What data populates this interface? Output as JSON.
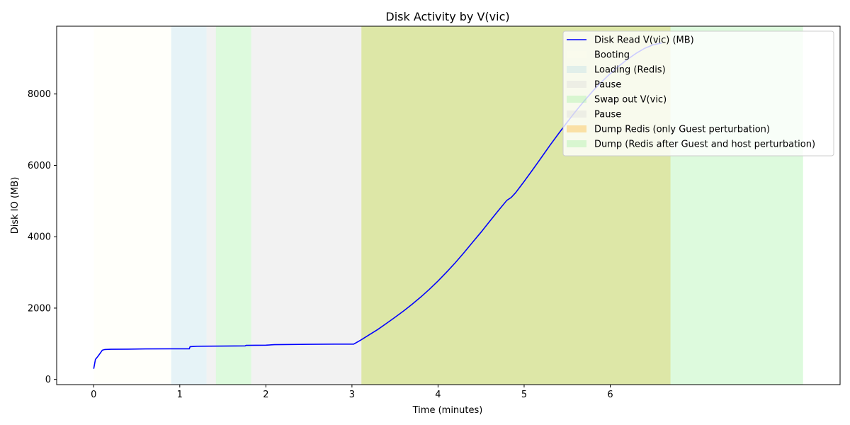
{
  "chart_data": {
    "type": "line",
    "title": "Disk Activity by V(vic)",
    "xlabel": "Time (minutes)",
    "ylabel": "Disk IO (MB)",
    "xlim": [
      -0.43,
      8.67
    ],
    "ylim": [
      -145,
      9900
    ],
    "xticks": [
      0,
      1,
      2,
      3,
      4,
      5,
      6
    ],
    "yticks": [
      0,
      2000,
      4000,
      6000,
      8000
    ],
    "grid": false,
    "legend_position": "top-right",
    "series": [
      {
        "name": "Disk Read V(vic) (MB)",
        "color": "#0000ff",
        "x": [
          0.0,
          0.02,
          0.05,
          0.08,
          0.1,
          0.13,
          0.2,
          0.4,
          0.6,
          0.9,
          1.11,
          1.12,
          1.2,
          1.5,
          1.76,
          1.77,
          2.0,
          2.1,
          2.3,
          2.5,
          2.8,
          3.02,
          3.1,
          3.2,
          3.3,
          3.4,
          3.5,
          3.6,
          3.7,
          3.8,
          3.9,
          4.0,
          4.1,
          4.2,
          4.3,
          4.4,
          4.5,
          4.6,
          4.7,
          4.8,
          4.85,
          4.9,
          5.0,
          5.1,
          5.2,
          5.3,
          5.4,
          5.5,
          5.6,
          5.7,
          5.8,
          5.9,
          6.0,
          6.1,
          6.2,
          6.3,
          6.4,
          6.5,
          6.6
        ],
        "values": [
          300,
          560,
          650,
          750,
          820,
          840,
          845,
          850,
          855,
          860,
          860,
          920,
          930,
          935,
          940,
          955,
          960,
          975,
          980,
          985,
          990,
          990,
          1100,
          1250,
          1400,
          1570,
          1740,
          1920,
          2110,
          2310,
          2530,
          2760,
          3010,
          3270,
          3550,
          3840,
          4130,
          4430,
          4730,
          5020,
          5100,
          5230,
          5550,
          5880,
          6220,
          6560,
          6890,
          7210,
          7520,
          7810,
          8090,
          8340,
          8570,
          8780,
          8970,
          9140,
          9280,
          9380,
          9430
        ]
      }
    ],
    "phases": [
      {
        "name": "Booting",
        "start": 0.0,
        "end": 0.9,
        "color": "#fffff0"
      },
      {
        "name": "Loading (Redis)",
        "start": 0.9,
        "end": 1.31,
        "color": "#add8e6"
      },
      {
        "name": "Pause",
        "start": 1.31,
        "end": 1.42,
        "color": "#d3d3d3"
      },
      {
        "name": "Swap out V(vic)",
        "start": 1.42,
        "end": 1.83,
        "color": "#90ee90"
      },
      {
        "name": "Pause",
        "start": 1.83,
        "end": 3.11,
        "color": "#d3d3d3"
      },
      {
        "name": "Dump Redis (only Guest perturbation)",
        "start": 3.11,
        "end": 6.7,
        "color": "#ffa500"
      },
      {
        "name": "Dump (Redis after Guest and host perturbation)",
        "start": 3.11,
        "end": 8.24,
        "color": "#90ee90"
      }
    ]
  }
}
